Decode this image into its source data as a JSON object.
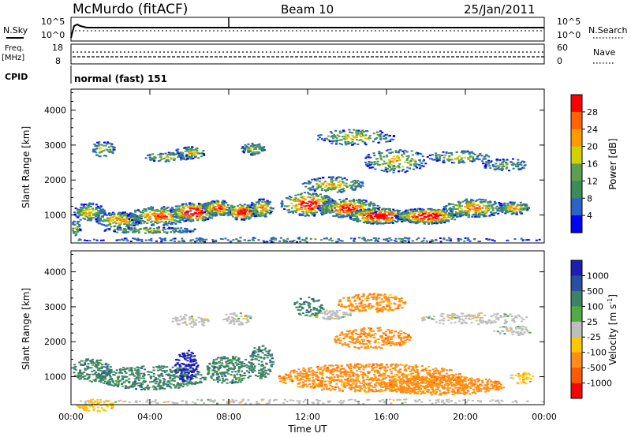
{
  "header": {
    "station": "McMurdo (fitACF)",
    "beam": "Beam 10",
    "date": "25/Jan/2011"
  },
  "status_panels": {
    "nsky_label": "N.Sky",
    "nsky_ticks": [
      "10^5",
      "10^0"
    ],
    "nsearch_label": "N.Search",
    "nsearch_ticks": [
      "10^5",
      "10^0"
    ],
    "freq_label": "Freq.",
    "freq_unit": "[MHz]",
    "freq_ticks": [
      "18",
      "8"
    ],
    "nave_label": "Nave",
    "nave_ticks": [
      "60",
      "0"
    ],
    "cpid_label": "CPID",
    "cpid_value": "normal (fast) 151"
  },
  "colors": {
    "power_scale": [
      "#0000ff",
      "#2a64c8",
      "#3c8c5a",
      "#5aa050",
      "#d2d200",
      "#ff9b00",
      "#ff6400",
      "#ff0000"
    ],
    "velocity_scale": [
      "#1e1eb4",
      "#2850a0",
      "#3c8264",
      "#50aa46",
      "#bebebe",
      "#ffc800",
      "#ff8c14",
      "#ff5a00",
      "#ff0000"
    ]
  },
  "chart_data": [
    {
      "type": "heatmap",
      "name": "power",
      "ylabel": "Slant Range [km]",
      "y_ticks": [
        "1000",
        "2000",
        "3000",
        "4000"
      ],
      "ylim": [
        200,
        4600
      ],
      "colorbar_label": "Power [dB]",
      "colorbar_ticks": [
        "4",
        "8",
        "12",
        "16",
        "20",
        "24",
        "28"
      ]
    },
    {
      "type": "heatmap",
      "name": "velocity",
      "ylabel": "Slant Range [km]",
      "y_ticks": [
        "1000",
        "2000",
        "3000",
        "4000"
      ],
      "ylim": [
        200,
        4600
      ],
      "colorbar_label": "Velocity [m s^-1]",
      "colorbar_ticks": [
        "1000",
        "500",
        "100",
        "25",
        "-25",
        "-100",
        "-500",
        "-1000"
      ],
      "xlabel": "Time UT",
      "x_ticks": [
        "00:00",
        "04:00",
        "08:00",
        "12:00",
        "16:00",
        "20:00",
        "00:00"
      ],
      "xlim": [
        "00:00",
        "24:00"
      ]
    }
  ]
}
